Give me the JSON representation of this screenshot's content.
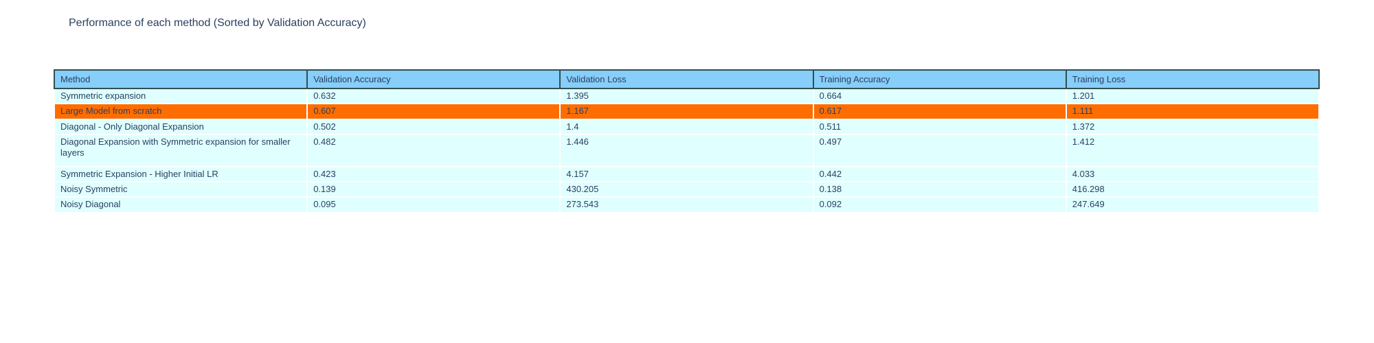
{
  "chart_data": {
    "type": "table",
    "title": "Performance of each method (Sorted by Validation Accuracy)",
    "columns": [
      "Method",
      "Validation Accuracy",
      "Validation Loss",
      "Training Accuracy",
      "Training Loss"
    ],
    "rows": [
      [
        "Symmetric expansion",
        "0.632",
        "1.395",
        "0.664",
        "1.201"
      ],
      [
        "Large Model from scratch",
        "0.607",
        "1.167",
        "0.617",
        "1.111"
      ],
      [
        "Diagonal - Only Diagonal Expansion",
        "0.502",
        "1.4",
        "0.511",
        "1.372"
      ],
      [
        "Diagonal Expansion with Symmetric expansion for smaller layers",
        "0.482",
        "1.446",
        "0.497",
        "1.412"
      ],
      [
        "Symmetric Expansion - Higher Initial LR",
        "0.423",
        "4.157",
        "0.442",
        "4.033"
      ],
      [
        "Noisy Symmetric",
        "0.139",
        "430.205",
        "0.138",
        "416.298"
      ],
      [
        "Noisy Diagonal",
        "0.095",
        "273.543",
        "0.092",
        "247.649"
      ],
      [
        "",
        "",
        "",
        "",
        ""
      ]
    ],
    "highlighted_row_index": 1,
    "highlighted_row_label": "Large Model from scratch",
    "legend_position": "none",
    "grid": false
  },
  "colors": {
    "header_bg": "#87CEFA",
    "header_border": "#2F4F4F",
    "row_bg": "#E0FFFF",
    "highlight_bg": "#FF6D00",
    "text": "#2A3F5F"
  }
}
